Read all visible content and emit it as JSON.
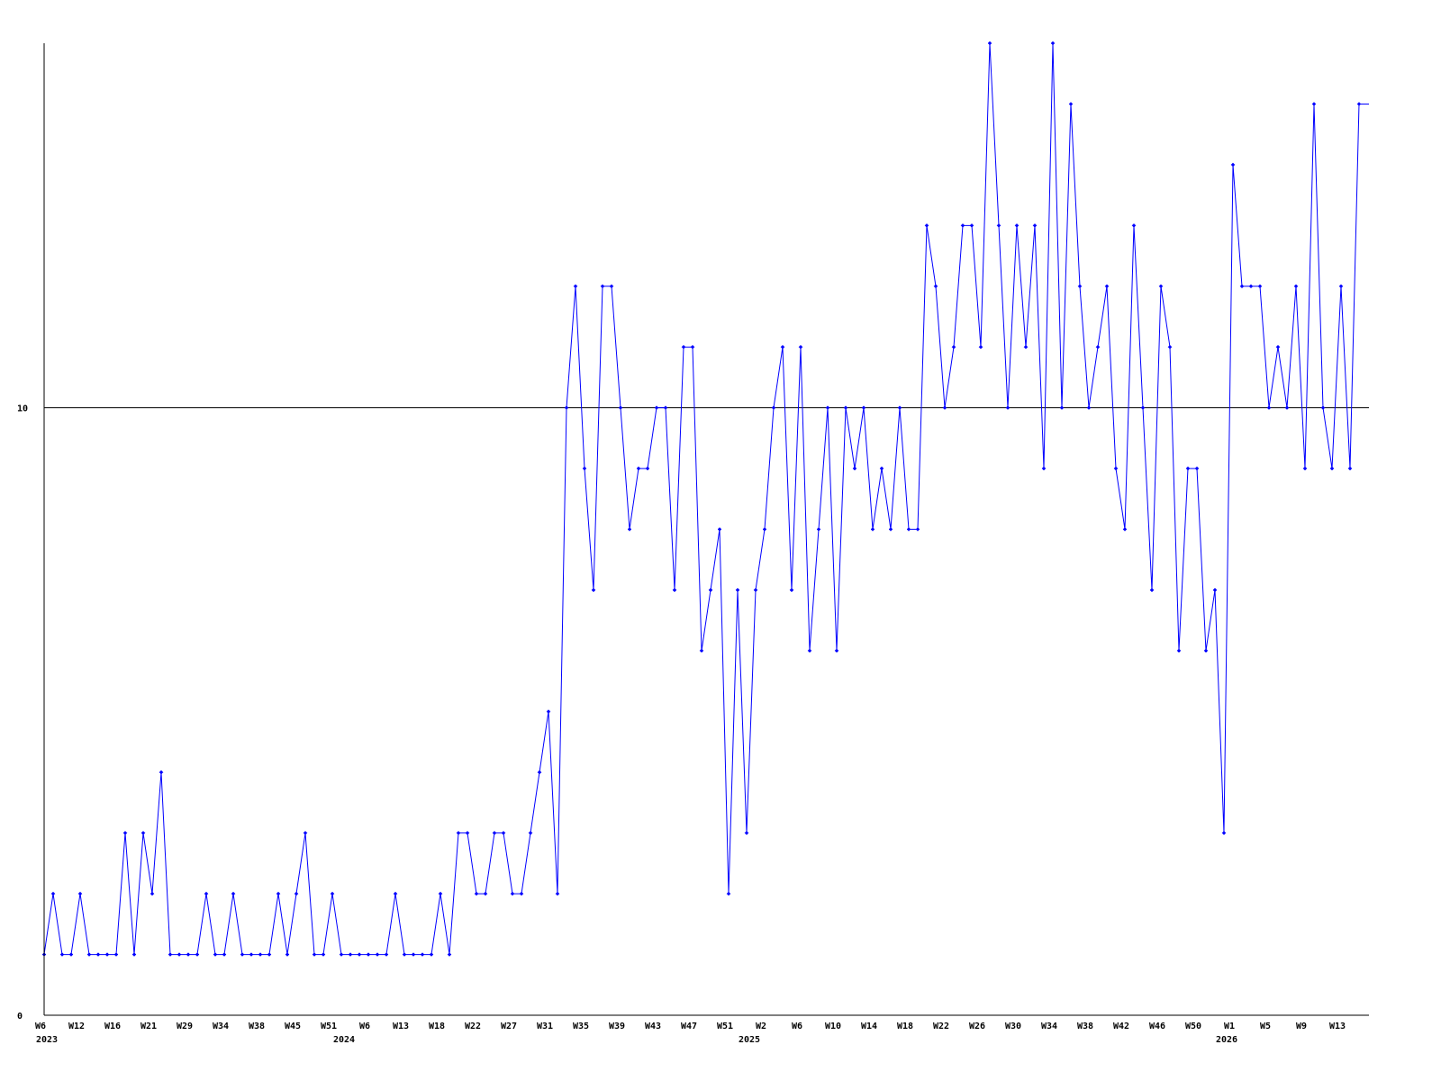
{
  "chart_data": {
    "type": "line",
    "title": "",
    "xlabel": "",
    "ylabel": "",
    "ylim": [
      0,
      16
    ],
    "y_ticks": [
      "0",
      "10"
    ],
    "y_tick_values": [
      0,
      10
    ],
    "reference_line": 10,
    "grid": false,
    "colors": {
      "series": "#0000ff",
      "axis": "#000000"
    },
    "x_tick_labels": [
      "W6",
      "W12",
      "W16",
      "W21",
      "W29",
      "W34",
      "W38",
      "W45",
      "W51",
      "W6",
      "W13",
      "W18",
      "W22",
      "W27",
      "W31",
      "W35",
      "W39",
      "W43",
      "W47",
      "W51",
      "W2",
      "W6",
      "W10",
      "W14",
      "W18",
      "W22",
      "W26",
      "W30",
      "W34",
      "W38",
      "W42",
      "W46",
      "W50",
      "W1",
      "W5",
      "W9",
      "W13"
    ],
    "x_tick_every": 4,
    "year_labels": [
      {
        "label": "2023",
        "index": 0
      },
      {
        "label": "2024",
        "index": 33
      },
      {
        "label": "2025",
        "index": 78
      },
      {
        "label": "2026",
        "index": 131
      }
    ],
    "series": [
      {
        "values": [
          1,
          2,
          1,
          1,
          2,
          1,
          1,
          1,
          1,
          3,
          1,
          3,
          2,
          4,
          1,
          1,
          1,
          1,
          2,
          1,
          1,
          2,
          1,
          1,
          1,
          1,
          2,
          1,
          2,
          3,
          1,
          1,
          2,
          1,
          1,
          1,
          1,
          1,
          1,
          2,
          1,
          1,
          1,
          1,
          2,
          1,
          3,
          3,
          2,
          2,
          3,
          3,
          2,
          2,
          3,
          4,
          5,
          2,
          10,
          12,
          9,
          7,
          12,
          12,
          10,
          8,
          9,
          9,
          10,
          10,
          7,
          11,
          11,
          6,
          7,
          8,
          2,
          7,
          3,
          7,
          8,
          10,
          11,
          7,
          11,
          6,
          8,
          10,
          6,
          10,
          9,
          10,
          8,
          9,
          8,
          10,
          8,
          8,
          13,
          12,
          10,
          11,
          13,
          13,
          11,
          16,
          13,
          10,
          13,
          11,
          13,
          9,
          16,
          10,
          15,
          12,
          10,
          11,
          12,
          9,
          8,
          13,
          10,
          7,
          12,
          11,
          6,
          9,
          9,
          6,
          7,
          3,
          14,
          12,
          12,
          12,
          10,
          11,
          10,
          12,
          9,
          15,
          10,
          9,
          12,
          9,
          15
        ]
      }
    ]
  }
}
